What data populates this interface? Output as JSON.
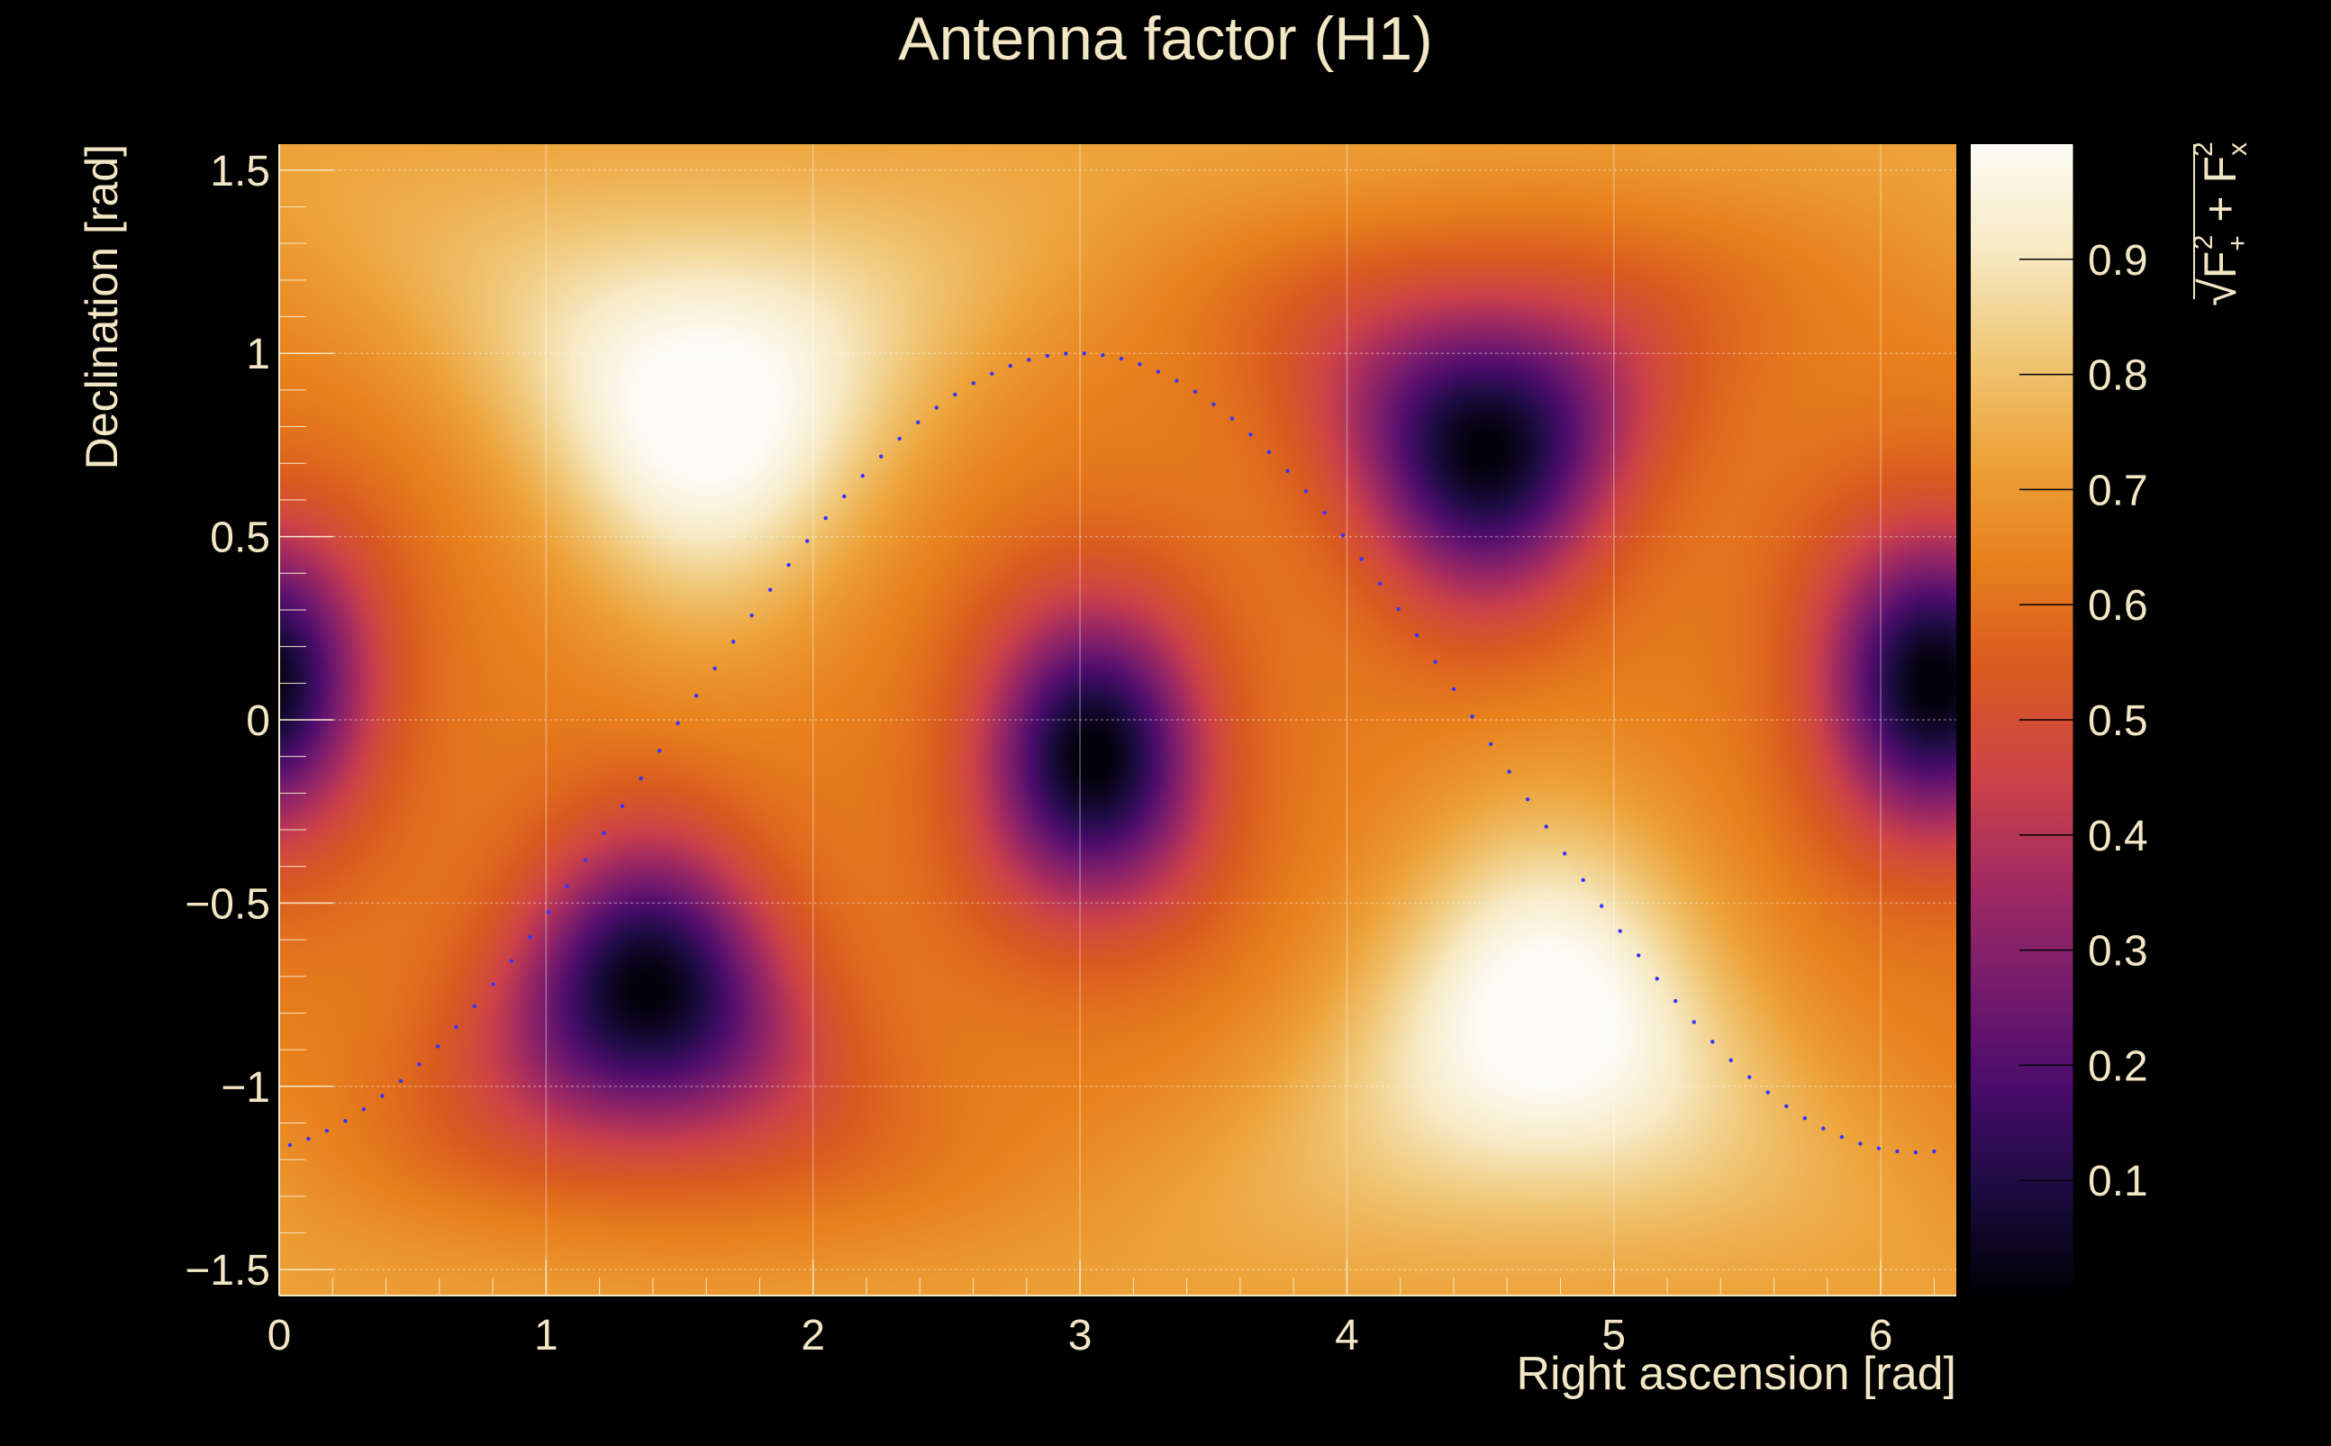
{
  "chart_data": {
    "type": "heatmap",
    "title": "Antenna factor (H1)",
    "xlabel": "Right ascension [rad]",
    "ylabel": "Declination [rad]",
    "zlabel": "√(F₊² + Fₓ²)",
    "zlabel_parts": {
      "root": "√",
      "f": "F",
      "plus_sub": "+",
      "cross_sub": "x",
      "sq": "2",
      "op": "+"
    },
    "xlim": [
      0,
      6.283
    ],
    "ylim": [
      -1.5708,
      1.5708
    ],
    "zlim": [
      0,
      1
    ],
    "x_ticks": [
      0,
      1,
      2,
      3,
      4,
      5,
      6
    ],
    "x_tick_labels": [
      "0",
      "1",
      "2",
      "3",
      "4",
      "5",
      "6"
    ],
    "y_ticks": [
      -1.5,
      -1,
      -0.5,
      0,
      0.5,
      1,
      1.5
    ],
    "y_tick_labels": [
      "−1.5",
      "−1",
      "−0.5",
      "0",
      "0.5",
      "1",
      "1.5"
    ],
    "z_ticks": [
      0.1,
      0.2,
      0.3,
      0.4,
      0.5,
      0.6,
      0.7,
      0.8,
      0.9
    ],
    "z_tick_labels": [
      "0.1",
      "0.2",
      "0.3",
      "0.4",
      "0.5",
      "0.6",
      "0.7",
      "0.8",
      "0.9"
    ],
    "grid": true,
    "colormap": [
      "#000004",
      "#1b0c41",
      "#4a0c6b",
      "#781c6d",
      "#a52c60",
      "#cf4446",
      "#d95a20",
      "#e8801c",
      "#eda33a",
      "#f0c878",
      "#f7eac4",
      "#fcfcf5"
    ],
    "extrema": [
      {
        "kind": "max",
        "x": 1.6,
        "y": 0.83,
        "value": 1.0
      },
      {
        "kind": "max",
        "x": 4.75,
        "y": -0.8,
        "value": 1.0
      },
      {
        "kind": "min",
        "x": 1.38,
        "y": -0.74,
        "value": 0.02
      },
      {
        "kind": "min",
        "x": 4.52,
        "y": 0.74,
        "value": 0.02
      },
      {
        "kind": "min",
        "x": 3.05,
        "y": -0.1,
        "value": 0.02
      },
      {
        "kind": "min",
        "x": 6.2,
        "y": 0.1,
        "value": 0.02
      }
    ],
    "overlay_series": {
      "style": "dotted",
      "color": "#3333ff",
      "description_curve": "declination = 1.09*cos(RA - 2.99) - 0.09",
      "x_start": 0.04,
      "x_end": 6.2,
      "amplitude": 1.09,
      "phase": 2.99,
      "offset": -0.09,
      "points": 90
    }
  }
}
